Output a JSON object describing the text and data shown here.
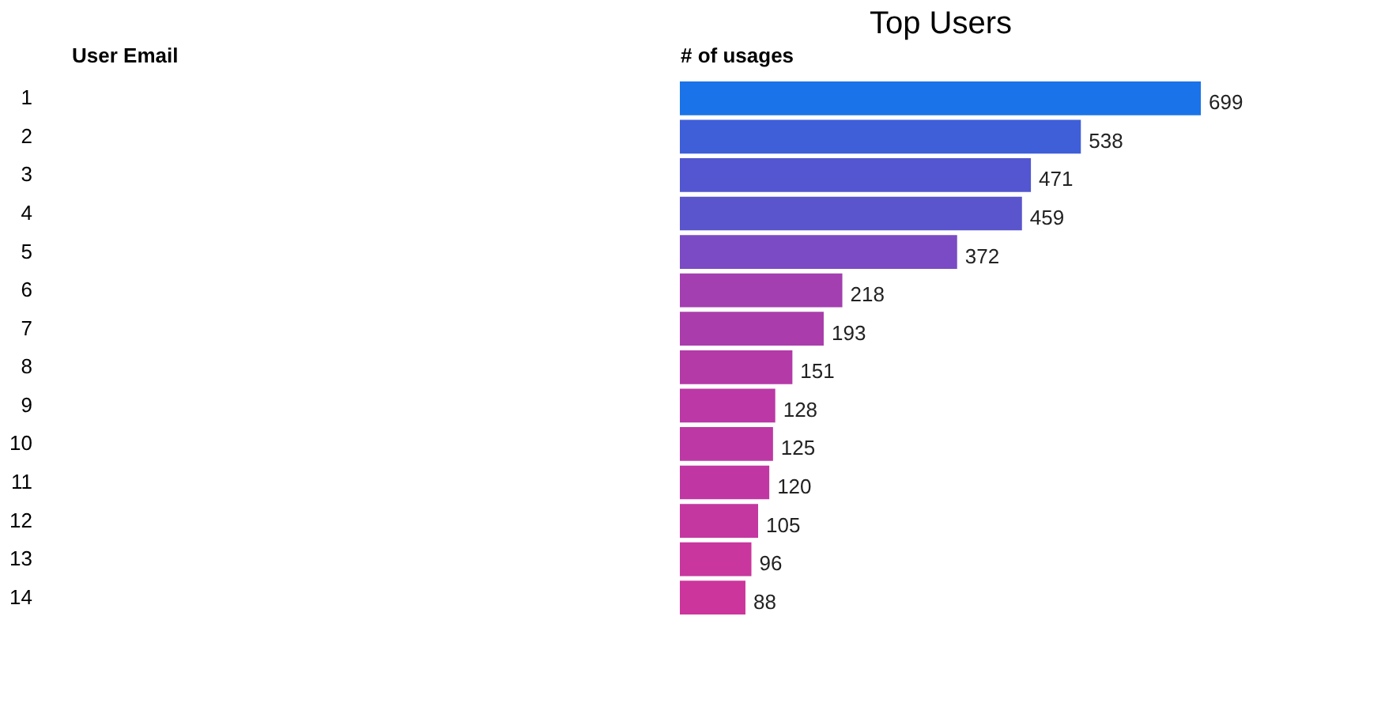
{
  "chart_data": {
    "type": "bar",
    "orientation": "horizontal",
    "title": "Top Users",
    "xlabel": "# of usages",
    "ylabel": "User Email",
    "categories": [
      "1",
      "2",
      "3",
      "4",
      "5",
      "6",
      "7",
      "8",
      "9",
      "10",
      "11",
      "12",
      "13",
      "14"
    ],
    "values": [
      699,
      538,
      471,
      459,
      372,
      218,
      193,
      151,
      128,
      125,
      120,
      105,
      96,
      88
    ],
    "colors": [
      "#1a73e8",
      "#3f5fd8",
      "#5356d0",
      "#5a55cc",
      "#7a4bc4",
      "#a33fb0",
      "#aa3dab",
      "#b43aa8",
      "#bb38a6",
      "#bd38a5",
      "#c037a3",
      "#c437a0",
      "#c8369e",
      "#cc359c"
    ],
    "data_labels": true,
    "tick_labels": "y"
  }
}
